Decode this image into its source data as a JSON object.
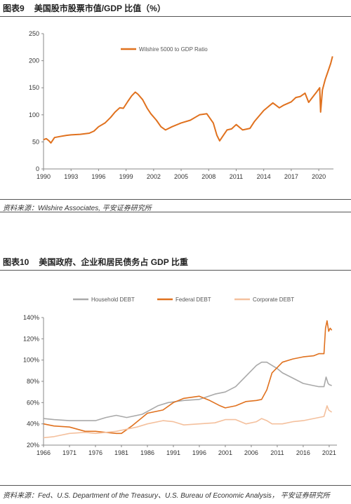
{
  "figure1": {
    "label": "图表9",
    "title": "美国股市股票市值/GDP 比值（%）",
    "source": "资料来源：Wilshire Associates, 平安证券研究所"
  },
  "figure2": {
    "label": "图表10",
    "title": "美国政府、企业和居民债务占 GDP 比重",
    "source": "资料来源：Fed、U.S. Department of the Treasury、U.S. Bureau of Economic Analysis，  平安证券研究所"
  },
  "chart_data": [
    {
      "type": "line",
      "title": "",
      "xlabel": "",
      "ylabel": "",
      "xlim": [
        1990,
        2021.6
      ],
      "ylim": [
        0,
        250
      ],
      "x_ticks": [
        "1990",
        "1993",
        "1996",
        "1999",
        "2002",
        "2005",
        "2008",
        "2011",
        "2014",
        "2017",
        "2020"
      ],
      "y_ticks": [
        "0",
        "50",
        "100",
        "150",
        "200",
        "250"
      ],
      "legend_position": "top-center",
      "grid": false,
      "series": [
        {
          "name": "Wilshire 5000 to GDP Ratio",
          "color": "#e0711e",
          "x": [
            1990,
            1990.3,
            1990.6,
            1990.8,
            1991.2,
            1991.8,
            1992.5,
            1993,
            1994,
            1995,
            1995.5,
            1996,
            1996.7,
            1997.3,
            1997.8,
            1998.3,
            1998.7,
            1999.2,
            1999.6,
            2000,
            2000.3,
            2000.8,
            2001.3,
            2001.7,
            2002.3,
            2002.8,
            2003.3,
            2004,
            2005,
            2006,
            2007,
            2007.8,
            2008.5,
            2008.9,
            2009.2,
            2009.6,
            2010,
            2010.5,
            2011,
            2011.7,
            2012.5,
            2013,
            2014,
            2015,
            2015.7,
            2016.2,
            2017,
            2017.5,
            2018,
            2018.5,
            2018.9,
            2019.3,
            2019.8,
            2020.1,
            2020.2,
            2020.4,
            2020.7,
            2021,
            2021.3,
            2021.5
          ],
          "y": [
            54,
            56,
            52,
            48,
            58,
            60,
            62,
            63,
            64,
            66,
            70,
            78,
            85,
            95,
            105,
            113,
            112,
            125,
            135,
            142,
            138,
            128,
            112,
            102,
            90,
            78,
            72,
            78,
            85,
            90,
            100,
            102,
            85,
            62,
            52,
            62,
            72,
            74,
            82,
            72,
            75,
            88,
            108,
            122,
            113,
            118,
            124,
            132,
            134,
            140,
            123,
            132,
            143,
            150,
            105,
            146,
            165,
            180,
            195,
            208
          ]
        }
      ]
    },
    {
      "type": "line",
      "title": "",
      "xlabel": "",
      "ylabel": "",
      "xlim": [
        1966,
        2022.5
      ],
      "ylim": [
        20,
        140
      ],
      "x_ticks": [
        "1966",
        "1971",
        "1976",
        "1981",
        "1986",
        "1991",
        "1996",
        "2001",
        "2006",
        "2011",
        "2016",
        "2021"
      ],
      "y_ticks": [
        "20%",
        "40%",
        "60%",
        "80%",
        "100%",
        "120%",
        "140%"
      ],
      "legend_position": "top",
      "grid": false,
      "series": [
        {
          "name": "Household DEBT",
          "color": "#a9a9a9",
          "x": [
            1966,
            1968,
            1971,
            1974,
            1976,
            1978,
            1980,
            1982,
            1985,
            1988,
            1990,
            1993,
            1996,
            1999,
            2001,
            2003,
            2005,
            2007,
            2008,
            2009,
            2010,
            2011,
            2012,
            2014,
            2016,
            2018,
            2019,
            2020,
            2020.4,
            2020.8,
            2021,
            2021.5
          ],
          "y": [
            45,
            44,
            43,
            43,
            43,
            46,
            48,
            46,
            49,
            57,
            60,
            62,
            63,
            68,
            70,
            75,
            85,
            95,
            98,
            98,
            95,
            92,
            88,
            83,
            78,
            76,
            75,
            75,
            84,
            78,
            77,
            76
          ]
        },
        {
          "name": "Federal DEBT",
          "color": "#e0711e",
          "x": [
            1966,
            1968,
            1971,
            1974,
            1976,
            1978,
            1980,
            1981,
            1983,
            1986,
            1989,
            1991,
            1993,
            1996,
            1998,
            2000,
            2001,
            2003,
            2005,
            2007,
            2008,
            2009,
            2010,
            2012,
            2014,
            2016,
            2018,
            2019,
            2020,
            2020.3,
            2020.6,
            2020.9,
            2021.2,
            2021.5
          ],
          "y": [
            40,
            38,
            37,
            33,
            33,
            32,
            31,
            31,
            38,
            50,
            53,
            60,
            64,
            66,
            62,
            57,
            55,
            57,
            61,
            62,
            63,
            72,
            88,
            98,
            101,
            103,
            104,
            106,
            106,
            130,
            137,
            127,
            130,
            128
          ]
        },
        {
          "name": "Corporate DEBT",
          "color": "#f4c09d",
          "x": [
            1966,
            1968,
            1971,
            1974,
            1976,
            1978,
            1980,
            1982,
            1984,
            1986,
            1989,
            1991,
            1993,
            1996,
            1999,
            2001,
            2003,
            2005,
            2007,
            2008,
            2009,
            2010,
            2012,
            2014,
            2016,
            2018,
            2019,
            2020,
            2020.3,
            2020.6,
            2020.9,
            2021.2,
            2021.5
          ],
          "y": [
            27,
            28,
            31,
            32,
            31,
            32,
            33,
            35,
            37,
            40,
            43,
            42,
            39,
            40,
            41,
            44,
            44,
            40,
            42,
            45,
            43,
            40,
            40,
            42,
            43,
            45,
            46,
            47,
            52,
            57,
            53,
            52,
            51
          ]
        }
      ]
    }
  ]
}
